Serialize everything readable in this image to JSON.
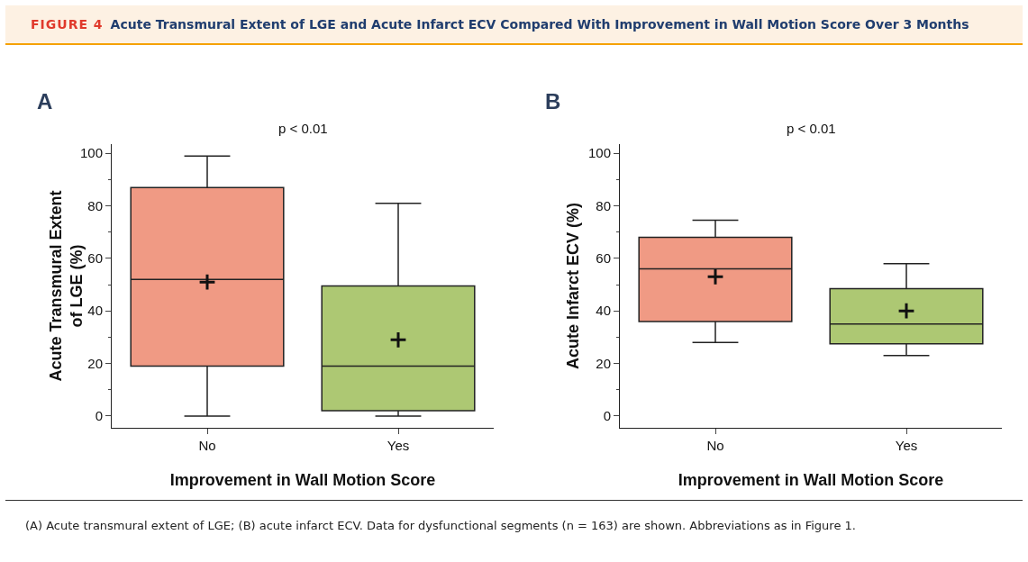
{
  "chart_data": [
    {
      "type": "box",
      "title": "A",
      "subtitle": "p < 0.01",
      "xlabel": "Improvement in Wall Motion Score",
      "ylabel": "Acute Transmural Extent of LGE (%)",
      "categories": [
        "No",
        "Yes"
      ],
      "colors": [
        "#f09a84",
        "#adc873"
      ],
      "boxes": [
        {
          "low": 0,
          "q1": 19,
          "median": 52,
          "q3": 87,
          "high": 99,
          "mean": 51
        },
        {
          "low": 0,
          "q1": 2,
          "median": 19,
          "q3": 49.5,
          "high": 81,
          "mean": 29
        }
      ],
      "ylim": [
        -4.5,
        103.5
      ],
      "yticks": [
        0,
        20,
        40,
        60,
        80,
        100
      ],
      "grid": false,
      "annotations": [
        "FIGURE 4  Acute Transmural Extent of LGE and Acute Infarct ECV Compared With Improvement in Wall Motion Score Over 3 Months",
        "(A) Acute transmural extent of LGE; (B) acute infarct ECV. Data for dysfunctional segments (n = 163) are shown. Abbreviations as in Figure 1."
      ]
    },
    {
      "type": "box",
      "title": "B",
      "subtitle": "p < 0.01",
      "xlabel": "Improvement in Wall Motion Score",
      "ylabel": "Acute Infarct ECV (%)",
      "categories": [
        "No",
        "Yes"
      ],
      "colors": [
        "#f09a84",
        "#adc873"
      ],
      "boxes": [
        {
          "low": 28,
          "q1": 36,
          "median": 56,
          "q3": 68,
          "high": 74.5,
          "mean": 53
        },
        {
          "low": 23,
          "q1": 27.5,
          "median": 35,
          "q3": 48.5,
          "high": 58,
          "mean": 40
        }
      ],
      "ylim": [
        -4.5,
        103.5
      ],
      "yticks": [
        0,
        20,
        40,
        60,
        80,
        100
      ],
      "grid": false
    }
  ]
}
